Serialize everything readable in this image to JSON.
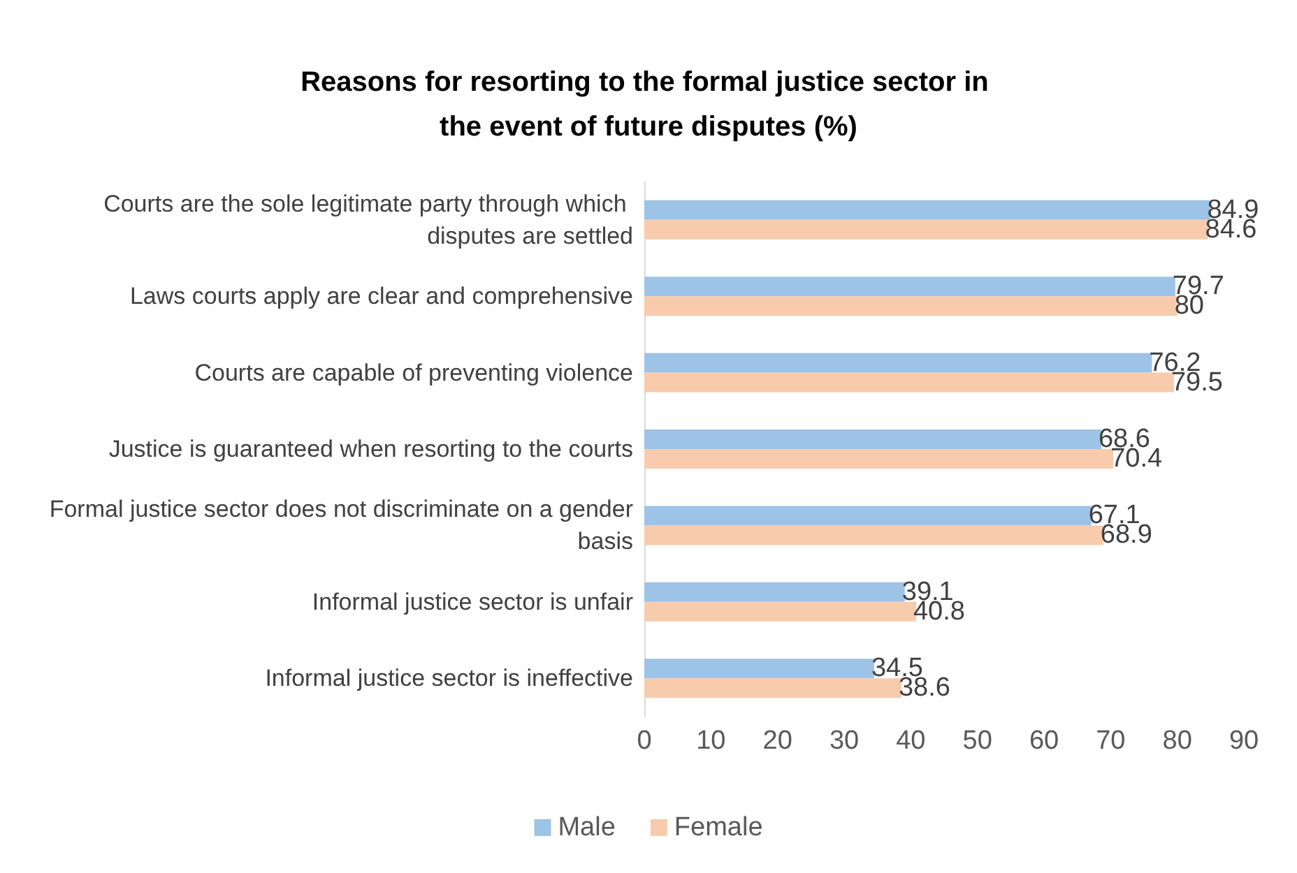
{
  "chart_data": {
    "type": "bar",
    "orientation": "horizontal",
    "title": "Reasons for resorting to the formal justice sector in the event of future disputes (%)",
    "categories": [
      "Courts are the sole legitimate party through which disputes are settled",
      "Laws courts apply are clear and comprehensive",
      "Courts are capable of preventing violence",
      "Justice is guaranteed when resorting to the courts",
      "Formal justice sector does not discriminate on a gender basis",
      "Informal justice sector is unfair",
      "Informal justice sector is ineffective"
    ],
    "series": [
      {
        "name": "Male",
        "color": "#9dc3e6",
        "values": [
          84.9,
          79.7,
          76.2,
          68.6,
          67.1,
          39.1,
          34.5
        ]
      },
      {
        "name": "Female",
        "color": "#f8cbad",
        "values": [
          84.6,
          80,
          79.5,
          70.4,
          68.9,
          40.8,
          38.6
        ]
      }
    ],
    "xlim": [
      0,
      90
    ],
    "xticks": [
      0,
      10,
      20,
      30,
      40,
      50,
      60,
      70,
      80,
      90
    ],
    "data_labels": true,
    "grid": false,
    "legend": "bottom"
  }
}
